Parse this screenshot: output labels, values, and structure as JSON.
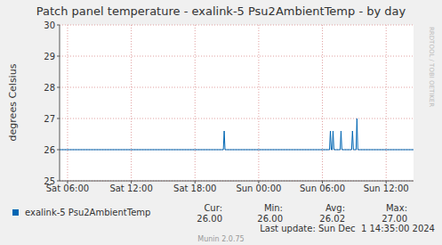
{
  "chart_data": {
    "type": "line",
    "title": "Patch panel temperature - exalink-5 Psu2AmbientTemp - by day",
    "y_label": "degrees Celsius",
    "x": [
      5.25,
      20.67,
      20.75,
      20.83,
      30.67,
      30.75,
      30.83,
      30.92,
      31,
      31.08,
      31.67,
      31.75,
      31.83,
      32.75,
      32.83,
      32.92,
      33.17,
      33.25,
      33.33,
      38.58
    ],
    "series": [
      {
        "name": "exalink-5 Psu2AmbientTemp",
        "color": "#0066b3",
        "values": [
          26,
          26,
          26.6,
          26,
          26,
          26.6,
          26,
          26,
          26.6,
          26,
          26,
          26.6,
          26,
          26,
          26.6,
          26,
          26,
          27,
          26,
          26
        ]
      }
    ],
    "xlim": [
      5.25,
      38.58
    ],
    "xticks": [
      {
        "value": 6,
        "label": "Sat 06:00"
      },
      {
        "value": 12,
        "label": "Sat 12:00"
      },
      {
        "value": 18,
        "label": "Sat 18:00"
      },
      {
        "value": 24,
        "label": "Sun 00:00"
      },
      {
        "value": 30,
        "label": "Sun 06:00"
      },
      {
        "value": 36,
        "label": "Sun 12:00"
      }
    ],
    "ylim": [
      25,
      30
    ],
    "yticks": [
      25,
      26,
      27,
      28,
      29,
      30
    ],
    "grid": true,
    "stats": [
      {
        "label": "Cur:",
        "value": 26.0
      },
      {
        "label": "Min:",
        "value": 26.0
      },
      {
        "label": "Avg:",
        "value": 26.02
      },
      {
        "label": "Max:",
        "value": 27.0
      }
    ],
    "last_update": "Last update: Sun Dec  1 14:35:00 2024",
    "footer": "Munin 2.0.75",
    "watermark": "RRDTOOL / TOBI OETIKER"
  }
}
